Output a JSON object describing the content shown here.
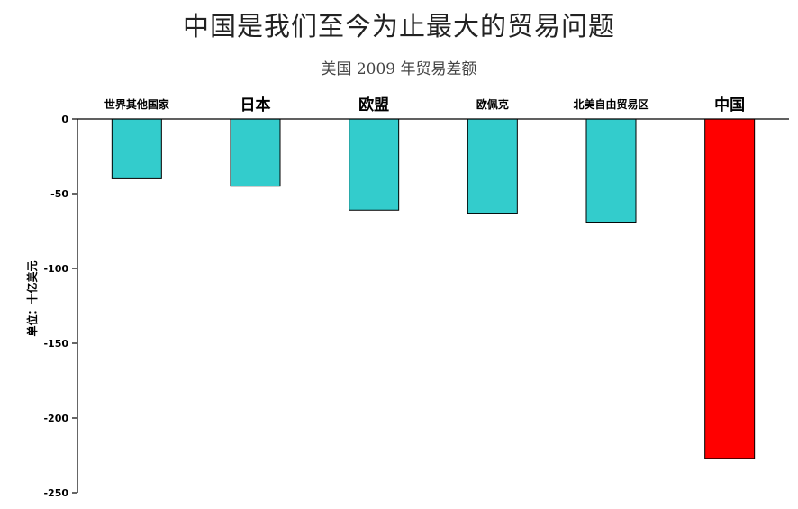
{
  "chart_data": {
    "type": "bar",
    "title": "中国是我们至今为止最大的贸易问题",
    "subtitle": "美国 2009 年贸易差额",
    "ylabel": "单位：十亿美元",
    "xlabel": "",
    "ylim": [
      -250,
      0
    ],
    "yticks": [
      0,
      -50,
      -100,
      -150,
      -200,
      -250
    ],
    "categories": [
      "世界其他国家",
      "日本",
      "欧盟",
      "欧佩克",
      "北美自由贸易区",
      "中国"
    ],
    "values": [
      -40,
      -45,
      -61,
      -63,
      -69,
      -227
    ],
    "colors": [
      "#33CCCC",
      "#33CCCC",
      "#33CCCC",
      "#33CCCC",
      "#33CCCC",
      "#FF0000"
    ],
    "category_label_emphasis": [
      false,
      true,
      true,
      false,
      false,
      true
    ],
    "grid": false,
    "category_labels_position": "top"
  }
}
